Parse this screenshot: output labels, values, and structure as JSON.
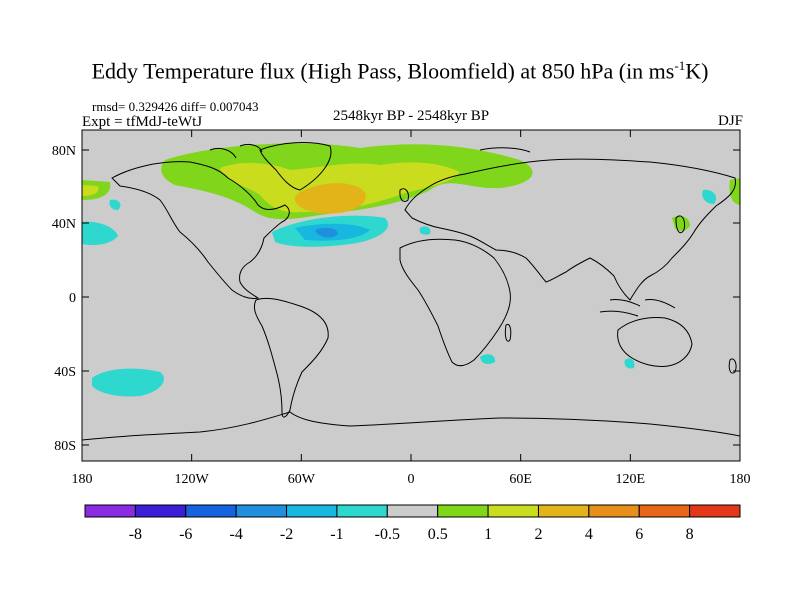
{
  "title": {
    "main": "Eddy Temperature flux (High Pass, Bloomfield) at 850 hPa (in ms",
    "sup": "-1",
    "end": "K)"
  },
  "stats": "rmsd= 0.329426 diff= 0.007043",
  "experiment": "Expt = tfMdJ-teWtJ",
  "period": "2548kyr BP - 2548kyr BP",
  "season": "DJF",
  "lat_labels": [
    "80N",
    "40N",
    "0",
    "40S",
    "80S"
  ],
  "lon_labels": [
    "180",
    "120W",
    "60W",
    "0",
    "60E",
    "120E",
    "180"
  ],
  "colorbar": {
    "labels": [
      "-8",
      "-6",
      "-4",
      "-2",
      "-1",
      "-0.5",
      "0.5",
      "1",
      "2",
      "4",
      "6",
      "8"
    ],
    "colors": [
      "#8a2be2",
      "#3a1fd6",
      "#1663e0",
      "#1f8fde",
      "#17b7e0",
      "#2fd8cf",
      "#cccccc",
      "#7fd61a",
      "#c9dc1e",
      "#e3b41a",
      "#e6901a",
      "#e86618",
      "#e3371a"
    ]
  },
  "map": {
    "background": "#cccccc",
    "coast_color": "#000000",
    "field_regions": [
      {
        "name": "north-atlantic-core",
        "color": "#e3b41a"
      },
      {
        "name": "north-atlantic-ring",
        "color": "#c9dc1e"
      },
      {
        "name": "north-atlantic-outer",
        "color": "#7fd61a"
      },
      {
        "name": "gulf-stream-neg",
        "color": "#2fd8cf"
      },
      {
        "name": "gulf-stream-core",
        "color": "#1f8fde"
      },
      {
        "name": "south-pacific-neg",
        "color": "#2fd8cf"
      }
    ]
  }
}
